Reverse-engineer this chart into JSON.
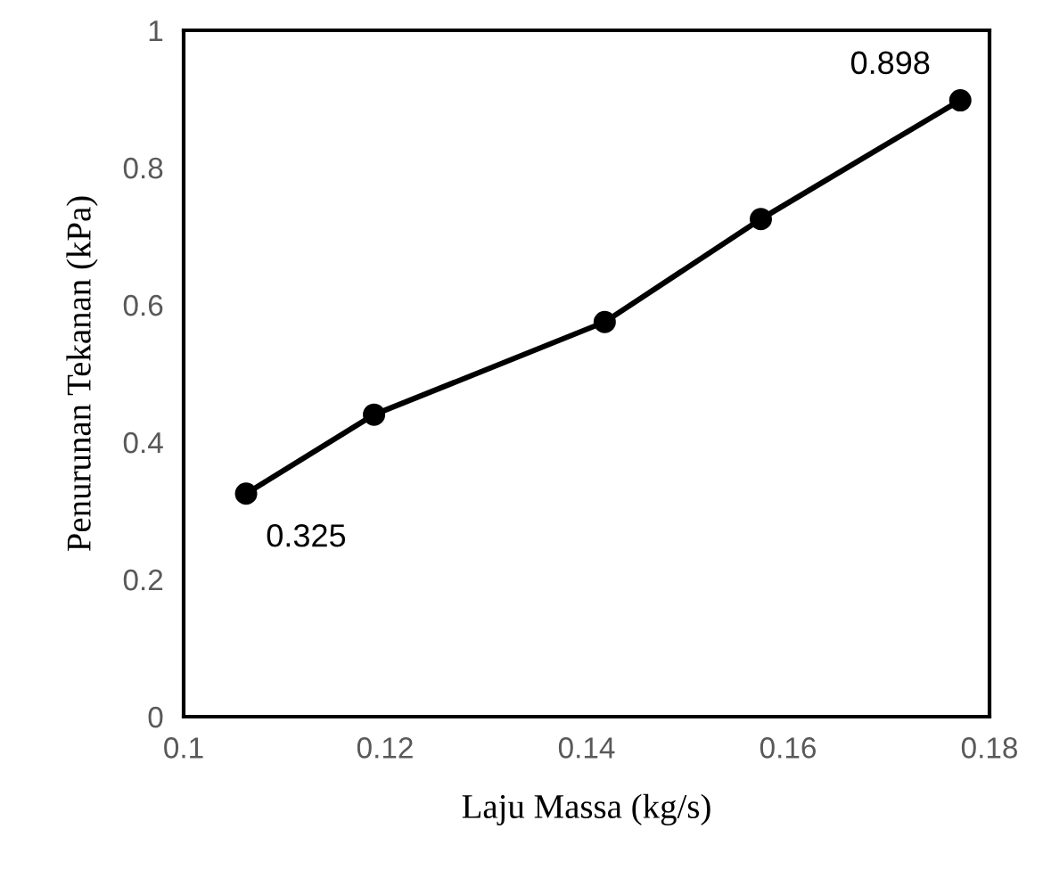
{
  "chart_data": {
    "type": "line",
    "xlabel": "Laju Massa (kg/s)",
    "ylabel": "Penurunan Tekanan (kPa)",
    "x": [
      0.1062,
      0.1189,
      0.1418,
      0.1573,
      0.1771
    ],
    "series": [
      {
        "color": "#000000",
        "values": [
          0.325,
          0.44,
          0.575,
          0.725,
          0.898
        ],
        "value_labels": [
          "0.325",
          null,
          null,
          null,
          "0.898"
        ]
      }
    ],
    "xlim": [
      0.1,
      0.18
    ],
    "xticks": [
      0.1,
      0.12,
      0.14,
      0.16,
      0.18
    ],
    "ylim": [
      0,
      1
    ],
    "yticks": [
      0,
      0.2,
      0.4,
      0.6,
      0.8,
      1
    ],
    "marker": "circle",
    "line_style": "solid",
    "grid": false
  }
}
